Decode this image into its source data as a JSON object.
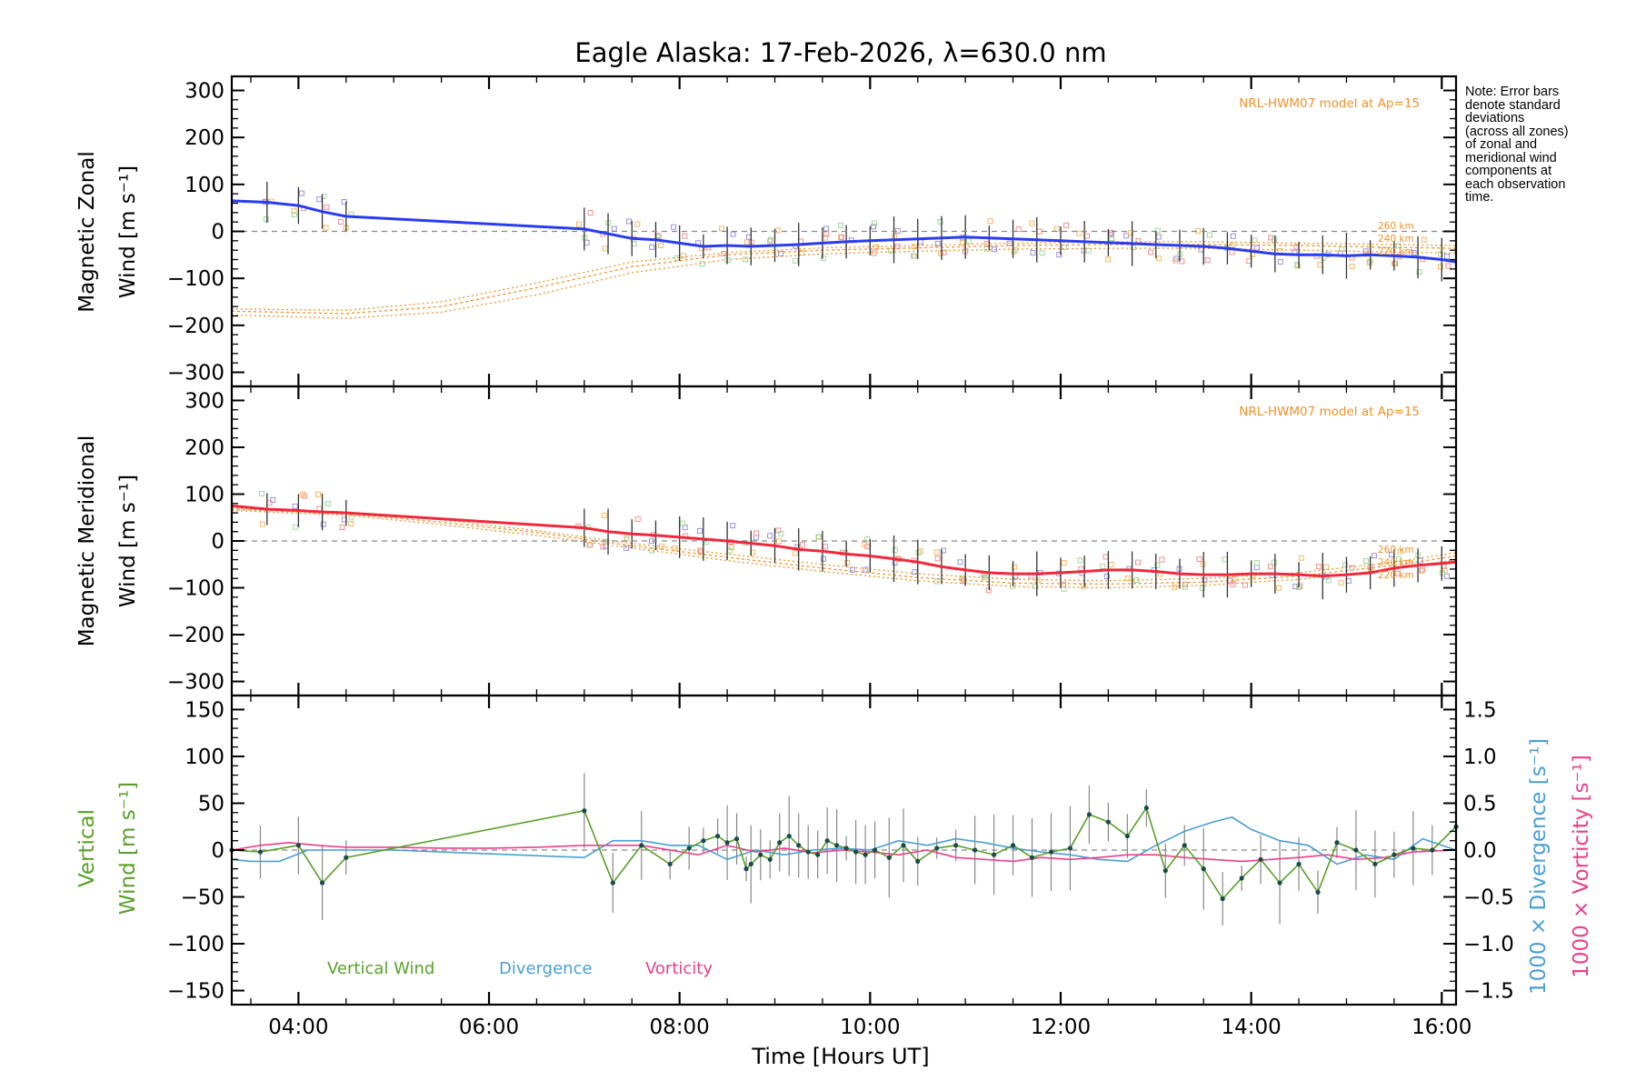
{
  "figure": {
    "title": "Eagle Alaska: 17-Feb-2026, λ=630.0 nm",
    "note_lines": [
      "Note: Error bars",
      "denote standard",
      "deviations",
      "(across all zones)",
      "of zonal and",
      "meridional wind",
      "components at",
      "each observation",
      "time."
    ],
    "xlabel": "Time [Hours UT]",
    "xticks": [
      "04:00",
      "06:00",
      "08:00",
      "10:00",
      "12:00",
      "14:00",
      "16:00"
    ],
    "colors": {
      "zonal": "#2a3cf0",
      "meridional": "#f0283c",
      "vertical": "#5aa02a",
      "divergence": "#4a9ed2",
      "vorticity": "#e8408a",
      "model": "#f0922a",
      "zonal_samples": "#9a90e0",
      "meridional_samples": "#9a90e0"
    }
  },
  "chart_data": [
    {
      "type": "line",
      "panel": "zonal",
      "ylabel": "Magnetic Zonal",
      "ylabel2": "Wind [m s⁻¹]",
      "ylim": [
        -330,
        330
      ],
      "yticks": [
        300,
        200,
        100,
        0,
        -100,
        -200,
        -300
      ],
      "xlim": [
        3.3,
        16.15
      ],
      "model_label": "NRL-HWM07 model at Ap=15",
      "model_alt_labels": [
        "260 km",
        "240 km",
        "220 km"
      ],
      "series": [
        {
          "name": "Zonal wind",
          "x": [
            3.3,
            3.67,
            4.0,
            4.25,
            4.5,
            7.0,
            7.25,
            7.5,
            7.75,
            8.0,
            8.25,
            8.5,
            8.75,
            9.0,
            9.25,
            9.5,
            9.75,
            10.0,
            10.25,
            10.5,
            10.75,
            11.0,
            11.25,
            11.5,
            11.75,
            12.0,
            12.25,
            12.5,
            12.75,
            13.0,
            13.25,
            13.5,
            13.75,
            14.0,
            14.25,
            14.5,
            14.75,
            15.0,
            15.25,
            15.5,
            15.75,
            16.0,
            16.15
          ],
          "values": [
            65,
            62,
            55,
            42,
            32,
            5,
            -5,
            -15,
            -18,
            -25,
            -32,
            -30,
            -32,
            -30,
            -28,
            -25,
            -22,
            -20,
            -18,
            -16,
            -14,
            -12,
            -14,
            -16,
            -18,
            -20,
            -22,
            -24,
            -26,
            -28,
            -30,
            -32,
            -36,
            -42,
            -48,
            -50,
            -50,
            -52,
            -50,
            -52,
            -55,
            -60,
            -65
          ]
        },
        {
          "name": "Model 260 km",
          "x": [
            3.3,
            4.5,
            5.5,
            6.5,
            7.5,
            8.5,
            9.5,
            10.5,
            11.5,
            12.5,
            13.5,
            14.5,
            15.5,
            16.15
          ],
          "values": [
            -165,
            -168,
            -150,
            -110,
            -65,
            -45,
            -35,
            -30,
            -25,
            -22,
            -22,
            -25,
            -28,
            -30
          ]
        },
        {
          "name": "Model 240 km",
          "x": [
            3.3,
            4.5,
            5.5,
            6.5,
            7.5,
            8.5,
            9.5,
            10.5,
            11.5,
            12.5,
            13.5,
            14.5,
            15.5,
            16.15
          ],
          "values": [
            -170,
            -175,
            -160,
            -120,
            -75,
            -50,
            -40,
            -35,
            -30,
            -28,
            -28,
            -30,
            -34,
            -36
          ]
        },
        {
          "name": "Model 220 km",
          "x": [
            3.3,
            4.5,
            5.5,
            6.5,
            7.5,
            8.5,
            9.5,
            10.5,
            11.5,
            12.5,
            13.5,
            14.5,
            15.5,
            16.15
          ],
          "values": [
            -178,
            -185,
            -172,
            -135,
            -88,
            -60,
            -48,
            -42,
            -38,
            -36,
            -36,
            -40,
            -44,
            -46
          ]
        }
      ]
    },
    {
      "type": "line",
      "panel": "meridional",
      "ylabel": "Magnetic Meridional",
      "ylabel2": "Wind [m s⁻¹]",
      "ylim": [
        -330,
        330
      ],
      "yticks": [
        300,
        200,
        100,
        0,
        -100,
        -200,
        -300
      ],
      "xlim": [
        3.3,
        16.15
      ],
      "model_label": "NRL-HWM07 model at Ap=15",
      "model_alt_labels": [
        "260 km",
        "240 km",
        "220 km"
      ],
      "series": [
        {
          "name": "Meridional wind",
          "x": [
            3.3,
            3.67,
            4.0,
            4.25,
            4.5,
            7.0,
            7.25,
            7.5,
            7.75,
            8.0,
            8.25,
            8.5,
            8.75,
            9.0,
            9.25,
            9.5,
            9.75,
            10.0,
            10.25,
            10.5,
            10.75,
            11.0,
            11.25,
            11.5,
            11.75,
            12.0,
            12.25,
            12.5,
            12.75,
            13.0,
            13.25,
            13.5,
            13.75,
            14.0,
            14.25,
            14.5,
            14.75,
            15.0,
            15.25,
            15.5,
            15.75,
            16.0,
            16.15
          ],
          "values": [
            75,
            68,
            65,
            62,
            60,
            28,
            20,
            15,
            12,
            8,
            4,
            0,
            -5,
            -10,
            -18,
            -22,
            -28,
            -32,
            -38,
            -45,
            -55,
            -62,
            -68,
            -70,
            -70,
            -68,
            -65,
            -62,
            -62,
            -65,
            -70,
            -72,
            -72,
            -70,
            -70,
            -72,
            -75,
            -72,
            -68,
            -58,
            -52,
            -48,
            -45
          ]
        },
        {
          "name": "Model 260 km",
          "x": [
            3.3,
            4.5,
            5.5,
            6.5,
            7.5,
            8.5,
            9.5,
            10.5,
            11.5,
            12.5,
            13.5,
            14.5,
            15.5,
            16.15
          ],
          "values": [
            70,
            62,
            45,
            22,
            -5,
            -28,
            -50,
            -70,
            -82,
            -85,
            -80,
            -68,
            -45,
            -25
          ]
        },
        {
          "name": "Model 240 km",
          "x": [
            3.3,
            4.5,
            5.5,
            6.5,
            7.5,
            8.5,
            9.5,
            10.5,
            11.5,
            12.5,
            13.5,
            14.5,
            15.5,
            16.15
          ],
          "values": [
            68,
            58,
            40,
            18,
            -10,
            -35,
            -58,
            -78,
            -90,
            -92,
            -88,
            -75,
            -52,
            -32
          ]
        },
        {
          "name": "Model 220 km",
          "x": [
            3.3,
            4.5,
            5.5,
            6.5,
            7.5,
            8.5,
            9.5,
            10.5,
            11.5,
            12.5,
            13.5,
            14.5,
            15.5,
            16.15
          ],
          "values": [
            65,
            55,
            35,
            12,
            -15,
            -42,
            -65,
            -85,
            -97,
            -100,
            -95,
            -82,
            -60,
            -40
          ]
        }
      ]
    },
    {
      "type": "line",
      "panel": "vertical",
      "ylabel": "Vertical",
      "ylabel2": "Wind [m s⁻¹]",
      "ylim": [
        -165,
        165
      ],
      "yticks": [
        150,
        100,
        50,
        0,
        -50,
        -100,
        -150
      ],
      "y2label_divergence": "1000 × Divergence [s⁻¹]",
      "y2label_vorticity": "1000 × Vorticity [s⁻¹]",
      "y2lim": [
        -1.65,
        1.65
      ],
      "y2ticks": [
        "1.5",
        "1.0",
        "0.5",
        "0.0",
        "−0.5",
        "−1.0",
        "−1.5"
      ],
      "xlim": [
        3.3,
        16.15
      ],
      "legend": [
        "Vertical Wind",
        "Divergence",
        "Vorticity"
      ],
      "series": [
        {
          "name": "Vertical Wind",
          "x": [
            3.3,
            3.6,
            4.0,
            4.25,
            4.5,
            7.0,
            7.3,
            7.6,
            7.9,
            8.1,
            8.25,
            8.4,
            8.5,
            8.6,
            8.7,
            8.75,
            8.85,
            8.95,
            9.05,
            9.15,
            9.25,
            9.35,
            9.45,
            9.55,
            9.65,
            9.75,
            9.85,
            9.95,
            10.05,
            10.2,
            10.35,
            10.5,
            10.7,
            10.9,
            11.1,
            11.3,
            11.5,
            11.7,
            11.9,
            12.1,
            12.3,
            12.5,
            12.7,
            12.9,
            13.1,
            13.3,
            13.5,
            13.7,
            13.9,
            14.1,
            14.3,
            14.5,
            14.7,
            14.9,
            15.1,
            15.3,
            15.5,
            15.7,
            15.9,
            16.15
          ],
          "values": [
            0,
            -2,
            5,
            -35,
            -8,
            42,
            -35,
            5,
            -15,
            2,
            10,
            15,
            8,
            12,
            -20,
            -15,
            -5,
            -10,
            8,
            15,
            5,
            -2,
            -5,
            10,
            5,
            2,
            -2,
            -5,
            0,
            -8,
            5,
            -12,
            2,
            5,
            0,
            -5,
            5,
            -8,
            -2,
            2,
            38,
            30,
            15,
            45,
            -22,
            5,
            -20,
            -52,
            -30,
            -10,
            -35,
            -15,
            -45,
            8,
            0,
            -15,
            -5,
            2,
            0,
            25
          ]
        },
        {
          "name": "Divergence",
          "x": [
            3.3,
            3.5,
            3.8,
            4.1,
            4.5,
            5.0,
            5.5,
            6.0,
            6.5,
            7.0,
            7.3,
            7.6,
            7.9,
            8.2,
            8.5,
            8.8,
            9.1,
            9.4,
            9.7,
            10.0,
            10.3,
            10.6,
            10.9,
            11.2,
            11.5,
            11.8,
            12.1,
            12.4,
            12.7,
            13.0,
            13.3,
            13.6,
            13.8,
            14.0,
            14.3,
            14.6,
            14.9,
            15.2,
            15.5,
            15.8,
            16.15
          ],
          "values": [
            -0.1,
            -0.12,
            -0.12,
            0.0,
            0.0,
            0.0,
            -0.02,
            -0.04,
            -0.06,
            -0.08,
            0.1,
            0.1,
            0.05,
            0.05,
            -0.1,
            0.0,
            -0.05,
            0.0,
            0.02,
            0.0,
            0.1,
            0.05,
            0.12,
            0.08,
            0.02,
            -0.02,
            -0.05,
            -0.1,
            -0.12,
            0.05,
            0.2,
            0.3,
            0.35,
            0.22,
            0.1,
            0.05,
            -0.15,
            -0.05,
            -0.1,
            0.12,
            0.0
          ]
        },
        {
          "name": "Vorticity",
          "x": [
            3.3,
            3.6,
            3.9,
            4.2,
            4.5,
            5.0,
            5.5,
            6.0,
            6.5,
            7.0,
            7.3,
            7.6,
            7.9,
            8.2,
            8.5,
            8.8,
            9.1,
            9.4,
            9.7,
            10.0,
            10.3,
            10.6,
            10.9,
            11.2,
            11.5,
            11.8,
            12.1,
            12.4,
            12.7,
            13.0,
            13.3,
            13.6,
            13.9,
            14.2,
            14.5,
            14.8,
            15.1,
            15.4,
            15.7,
            16.15
          ],
          "values": [
            0.0,
            0.05,
            0.08,
            0.05,
            0.03,
            0.03,
            0.02,
            0.02,
            0.03,
            0.05,
            0.05,
            0.05,
            0.0,
            -0.05,
            0.05,
            -0.02,
            0.02,
            -0.03,
            0.0,
            -0.02,
            -0.05,
            0.0,
            -0.08,
            -0.1,
            -0.12,
            -0.08,
            -0.1,
            -0.08,
            -0.05,
            -0.05,
            -0.08,
            -0.1,
            -0.12,
            -0.1,
            -0.08,
            -0.05,
            -0.1,
            -0.08,
            -0.02,
            0.0
          ]
        }
      ]
    }
  ]
}
